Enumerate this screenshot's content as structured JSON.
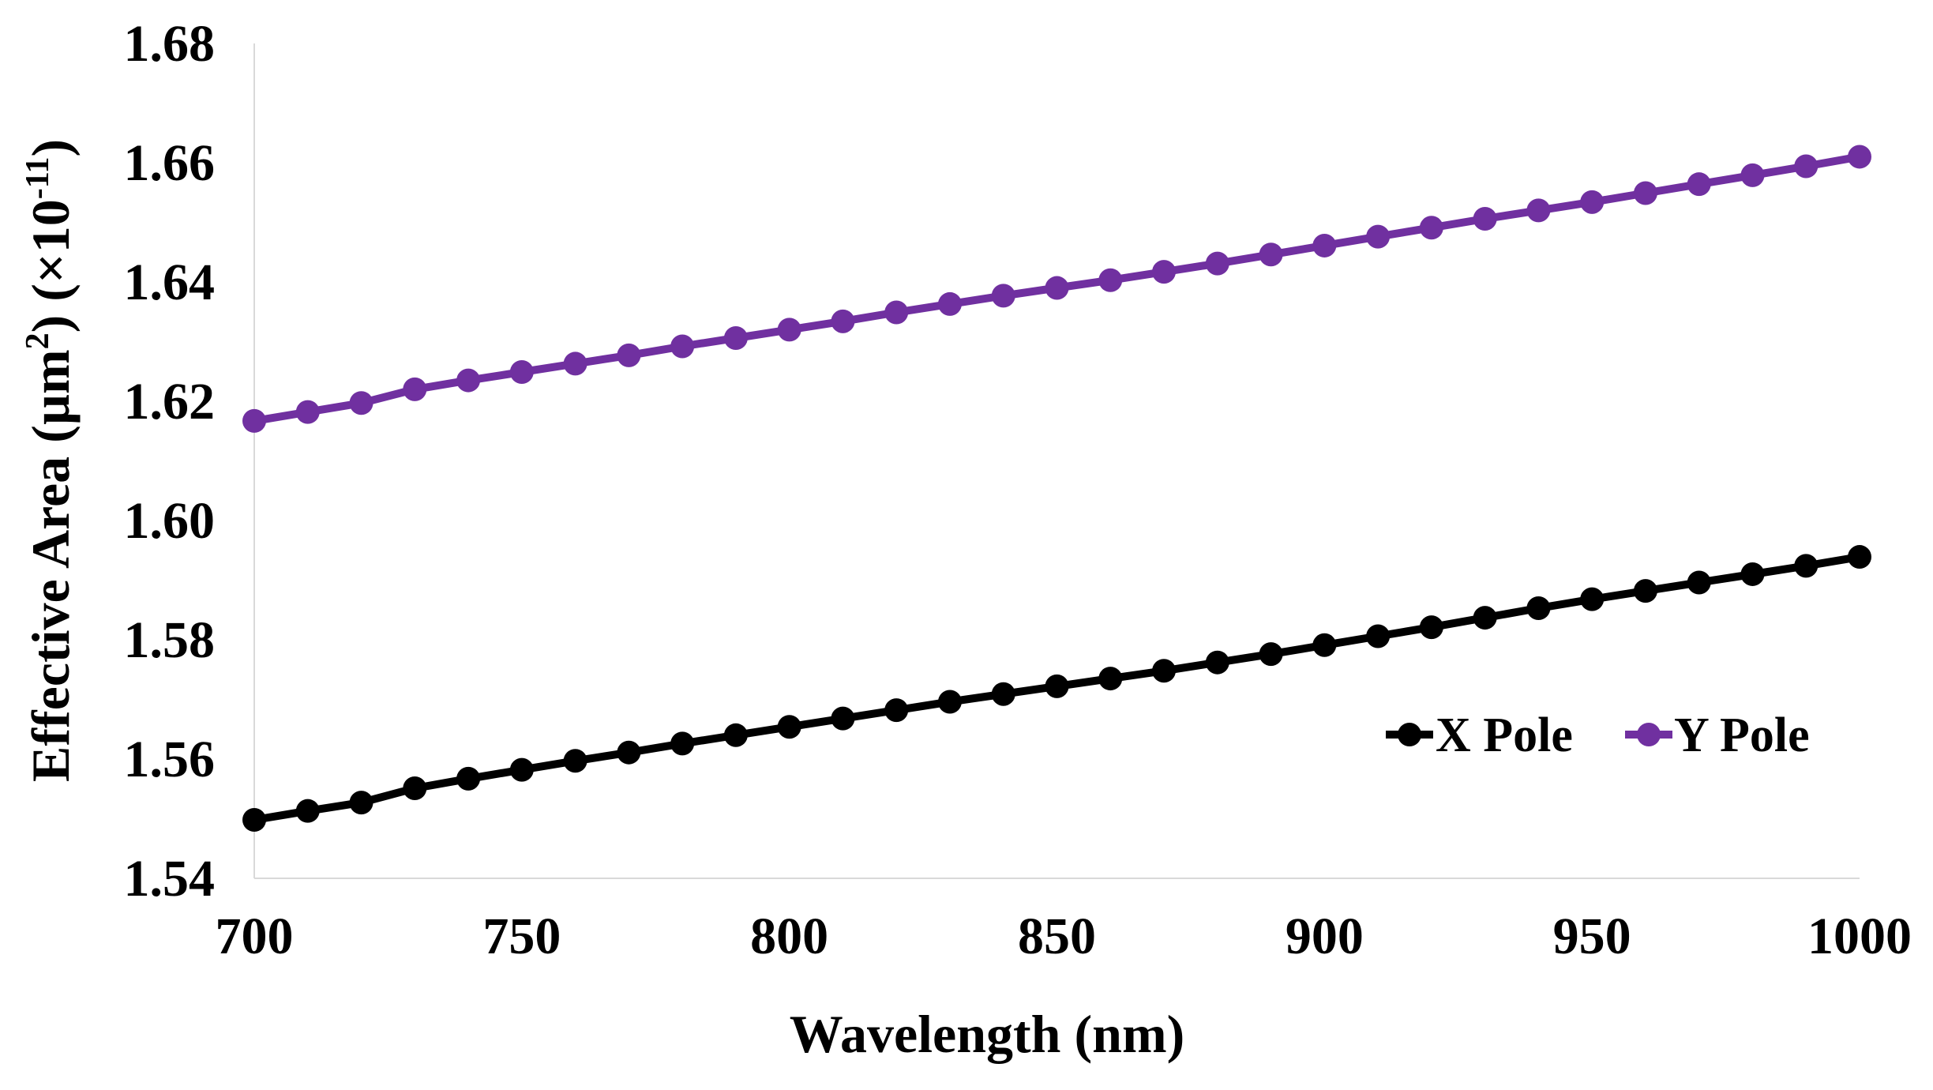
{
  "chart_data": {
    "type": "line",
    "title": "",
    "xlabel": "Wavelength (nm)",
    "ylabel_parts": {
      "main": "Effective Area (µm",
      "sq": "2",
      "mid": ") (×10",
      "exp": "-11",
      "end": ")"
    },
    "xlim": [
      700,
      1000
    ],
    "ylim": [
      1.54,
      1.68
    ],
    "xticks": [
      700,
      750,
      800,
      850,
      900,
      950,
      1000
    ],
    "yticks": [
      1.54,
      1.56,
      1.58,
      1.6,
      1.62,
      1.64,
      1.66,
      1.68
    ],
    "ytick_decimals": 2,
    "grid": false,
    "legend_position": "bottom-right",
    "x": [
      700,
      710,
      720,
      730,
      740,
      750,
      760,
      770,
      780,
      790,
      800,
      810,
      820,
      830,
      840,
      850,
      860,
      870,
      880,
      890,
      900,
      910,
      920,
      930,
      940,
      950,
      960,
      970,
      980,
      990,
      1000
    ],
    "series": [
      {
        "name": "X Pole",
        "color": "#000000",
        "values": [
          1.5498,
          1.5513,
          1.5527,
          1.5551,
          1.5567,
          1.5582,
          1.5597,
          1.5611,
          1.5626,
          1.564,
          1.5654,
          1.5668,
          1.5682,
          1.5696,
          1.5709,
          1.5722,
          1.5735,
          1.5748,
          1.5762,
          1.5776,
          1.5791,
          1.5806,
          1.5821,
          1.5837,
          1.5853,
          1.5868,
          1.5882,
          1.5896,
          1.591,
          1.5924,
          1.5939
        ]
      },
      {
        "name": "Y Pole",
        "color": "#7030A0",
        "values": [
          1.6167,
          1.6182,
          1.6197,
          1.622,
          1.6235,
          1.6249,
          1.6263,
          1.6277,
          1.6292,
          1.6306,
          1.632,
          1.6334,
          1.6349,
          1.6363,
          1.6377,
          1.639,
          1.6403,
          1.6417,
          1.6431,
          1.6446,
          1.6461,
          1.6476,
          1.6491,
          1.6506,
          1.652,
          1.6534,
          1.6549,
          1.6564,
          1.6579,
          1.6594,
          1.661
        ]
      }
    ]
  }
}
